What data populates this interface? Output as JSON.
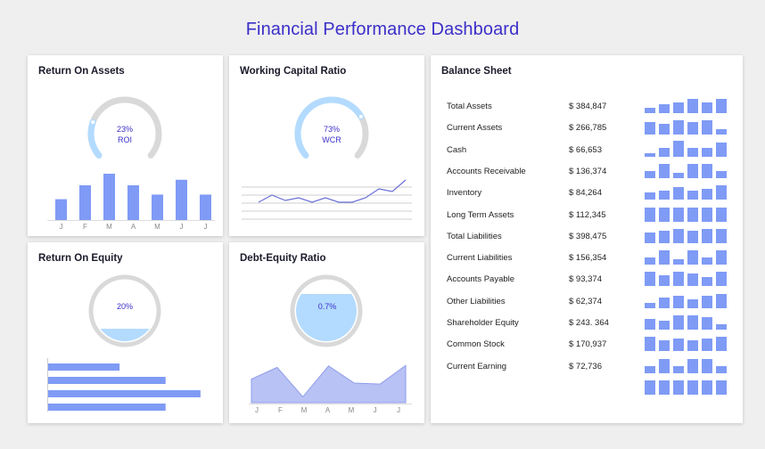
{
  "page": {
    "title": "Financial Performance Dashboard"
  },
  "colors": {
    "accent": "#3b2fc9",
    "bar": "#7f9bf5",
    "gauge_fill": "#b3dbff",
    "gauge_track": "#d9d9d9"
  },
  "roa": {
    "title": "Return On Assets",
    "gauge": {
      "value": 23,
      "value_text": "23%",
      "label": "ROI"
    },
    "chart_data": {
      "type": "bar",
      "categories": [
        "J",
        "F",
        "M",
        "A",
        "M",
        "J",
        "J"
      ],
      "values": [
        45,
        75,
        100,
        75,
        55,
        87,
        55
      ],
      "ylim": [
        0,
        100
      ]
    }
  },
  "wcr": {
    "title": "Working Capital Ratio",
    "gauge": {
      "value": 73,
      "value_text": "73%",
      "label": "WCR"
    },
    "chart_data": {
      "type": "line",
      "x": [
        1,
        2,
        3,
        4,
        5,
        6,
        7,
        8,
        9,
        10,
        11,
        12
      ],
      "values": [
        10,
        18,
        12,
        15,
        10,
        15,
        10,
        10,
        15,
        25,
        22,
        35
      ],
      "ylim": [
        0,
        40
      ]
    }
  },
  "roe": {
    "title": "Return On Equity",
    "gauge": {
      "value": 20,
      "value_text": "20%"
    },
    "chart_data": {
      "type": "bar",
      "orientation": "horizontal",
      "values": [
        45,
        74,
        96,
        74
      ],
      "xlim": [
        0,
        100
      ]
    }
  },
  "der": {
    "title": "Debt-Equity Ratio",
    "gauge": {
      "value": 0.7,
      "value_text": "0.7%"
    },
    "chart_data": {
      "type": "area",
      "categories": [
        "J",
        "F",
        "M",
        "A",
        "M",
        "J",
        "J"
      ],
      "values": [
        48,
        72,
        12,
        75,
        40,
        38,
        76
      ],
      "ylim": [
        0,
        100
      ]
    }
  },
  "balance": {
    "title": "Balance Sheet",
    "rows": [
      {
        "label": "Total Assets",
        "value": "$ 384,847",
        "bars": [
          3,
          5,
          6,
          8,
          6,
          8
        ]
      },
      {
        "label": "Current Assets",
        "value": "$ 266,785",
        "bars": [
          7,
          6,
          8,
          7,
          8,
          3
        ]
      },
      {
        "label": "Cash",
        "value": "$ 66,653",
        "bars": [
          2,
          5,
          9,
          5,
          5,
          8
        ]
      },
      {
        "label": "Accounts Receivable",
        "value": "$ 136,374",
        "bars": [
          4,
          8,
          3,
          8,
          8,
          4
        ]
      },
      {
        "label": "Inventory",
        "value": "$ 84,264",
        "bars": [
          4,
          5,
          7,
          5,
          6,
          8
        ]
      },
      {
        "label": "Long Term Assets",
        "value": "$ 112,345",
        "bars": [
          8,
          8,
          8,
          8,
          8,
          8
        ]
      },
      {
        "label": "Total Liabilities",
        "value": "$ 398,475",
        "bars": [
          6,
          7,
          8,
          7,
          8,
          8
        ]
      },
      {
        "label": "Current Liabilities",
        "value": "$ 156,354",
        "bars": [
          4,
          8,
          3,
          8,
          4,
          8
        ]
      },
      {
        "label": "Accounts Payable",
        "value": "$ 93,374",
        "bars": [
          8,
          6,
          8,
          7,
          5,
          8
        ]
      },
      {
        "label": "Other Liabilities",
        "value": "$ 62,374",
        "bars": [
          3,
          6,
          7,
          5,
          7,
          8
        ]
      },
      {
        "label": "Shareholder Equity",
        "value": "$ 243. 364",
        "bars": [
          6,
          5,
          8,
          8,
          7,
          3
        ]
      },
      {
        "label": "Common Stock",
        "value": "$ 170,937",
        "bars": [
          8,
          6,
          7,
          6,
          7,
          8
        ]
      },
      {
        "label": "Current Earning",
        "value": "$ 72,736",
        "bars": [
          4,
          8,
          4,
          8,
          8,
          4
        ]
      },
      {
        "label": "",
        "value": "",
        "bars": [
          8,
          8,
          8,
          8,
          8,
          8
        ]
      }
    ]
  }
}
